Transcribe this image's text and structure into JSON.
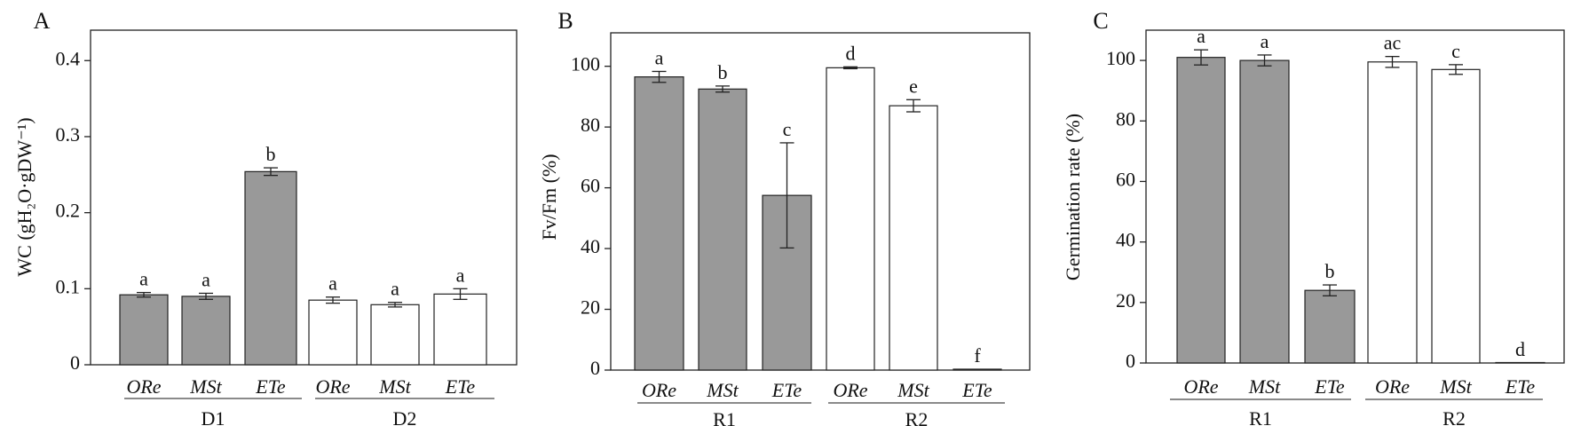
{
  "chart_data": [
    {
      "type": "bar",
      "panel": "A",
      "ylabel": "WC (gH₂O·gDW⁻¹)",
      "ylim": [
        0,
        0.44
      ],
      "yticks": [
        0,
        0.1,
        0.2,
        0.3,
        0.4
      ],
      "ytick_labels": [
        "0",
        "0.1",
        "0.2",
        "0.3",
        "0.4"
      ],
      "categories": [
        "ORe",
        "MSt",
        "ETe",
        "ORe",
        "MSt",
        "ETe"
      ],
      "groups": [
        {
          "label": "D1",
          "start": 0,
          "end": 2
        },
        {
          "label": "D2",
          "start": 3,
          "end": 5
        }
      ],
      "values": [
        0.092,
        0.09,
        0.254,
        0.085,
        0.079,
        0.093
      ],
      "errors": [
        0.003,
        0.004,
        0.005,
        0.004,
        0.003,
        0.007
      ],
      "significance": [
        "a",
        "a",
        "b",
        "a",
        "a",
        "a"
      ],
      "fills": [
        "#999999",
        "#999999",
        "#999999",
        "#ffffff",
        "#ffffff",
        "#ffffff"
      ]
    },
    {
      "type": "bar",
      "panel": "B",
      "ylabel": "Fv/Fm (%)",
      "ylim": [
        0,
        111
      ],
      "yticks": [
        0,
        20,
        40,
        60,
        80,
        100
      ],
      "ytick_labels": [
        "0",
        "20",
        "40",
        "60",
        "80",
        "100"
      ],
      "categories": [
        "ORe",
        "MSt",
        "ETe",
        "ORe",
        "MSt",
        "ETe"
      ],
      "groups": [
        {
          "label": "R1",
          "start": 0,
          "end": 2
        },
        {
          "label": "R2",
          "start": 3,
          "end": 5
        }
      ],
      "values": [
        96.5,
        92.5,
        57.5,
        99.5,
        87.0,
        0.3
      ],
      "errors": [
        1.8,
        1.0,
        17.3,
        0.3,
        2.0,
        0
      ],
      "significance": [
        "a",
        "b",
        "c",
        "d",
        "e",
        "f"
      ],
      "fills": [
        "#999999",
        "#999999",
        "#999999",
        "#ffffff",
        "#ffffff",
        "#ffffff"
      ]
    },
    {
      "type": "bar",
      "panel": "C",
      "ylabel": "Germination rate (%)",
      "ylim": [
        0,
        110
      ],
      "yticks": [
        0,
        20,
        40,
        60,
        80,
        100
      ],
      "ytick_labels": [
        "0",
        "20",
        "40",
        "60",
        "80",
        "100"
      ],
      "categories": [
        "ORe",
        "MSt",
        "ETe",
        "ORe",
        "MSt",
        "ETe"
      ],
      "groups": [
        {
          "label": "R1",
          "start": 0,
          "end": 2
        },
        {
          "label": "R2",
          "start": 3,
          "end": 5
        }
      ],
      "values": [
        101.0,
        100.0,
        24.0,
        99.5,
        97.0,
        0
      ],
      "errors": [
        2.5,
        1.8,
        1.8,
        1.8,
        1.6,
        0
      ],
      "significance": [
        "a",
        "a",
        "b",
        "ac",
        "c",
        "d"
      ],
      "fills": [
        "#999999",
        "#999999",
        "#999999",
        "#ffffff",
        "#ffffff",
        "#ffffff"
      ]
    }
  ]
}
